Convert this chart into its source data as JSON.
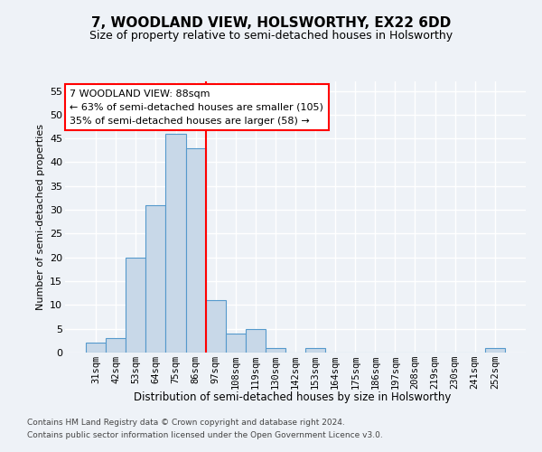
{
  "title": "7, WOODLAND VIEW, HOLSWORTHY, EX22 6DD",
  "subtitle": "Size of property relative to semi-detached houses in Holsworthy",
  "xlabel": "Distribution of semi-detached houses by size in Holsworthy",
  "ylabel": "Number of semi-detached properties",
  "footnote1": "Contains HM Land Registry data © Crown copyright and database right 2024.",
  "footnote2": "Contains public sector information licensed under the Open Government Licence v3.0.",
  "categories": [
    "31sqm",
    "42sqm",
    "53sqm",
    "64sqm",
    "75sqm",
    "86sqm",
    "97sqm",
    "108sqm",
    "119sqm",
    "130sqm",
    "142sqm",
    "153sqm",
    "164sqm",
    "175sqm",
    "186sqm",
    "197sqm",
    "208sqm",
    "219sqm",
    "230sqm",
    "241sqm",
    "252sqm"
  ],
  "values": [
    2,
    3,
    20,
    31,
    46,
    43,
    11,
    4,
    5,
    1,
    0,
    1,
    0,
    0,
    0,
    0,
    0,
    0,
    0,
    0,
    1
  ],
  "bar_color": "#c8d8e8",
  "bar_edge_color": "#5599cc",
  "vline_x_index": 5,
  "vline_color": "red",
  "ylim": [
    0,
    57
  ],
  "yticks": [
    0,
    5,
    10,
    15,
    20,
    25,
    30,
    35,
    40,
    45,
    50,
    55
  ],
  "annotation_line1": "7 WOODLAND VIEW: 88sqm",
  "annotation_line2": "← 63% of semi-detached houses are smaller (105)",
  "annotation_line3": "35% of semi-detached houses are larger (58) →",
  "annotation_box_color": "white",
  "annotation_box_edge_color": "red",
  "background_color": "#eef2f7",
  "grid_color": "white",
  "title_fontsize": 11,
  "subtitle_fontsize": 9
}
